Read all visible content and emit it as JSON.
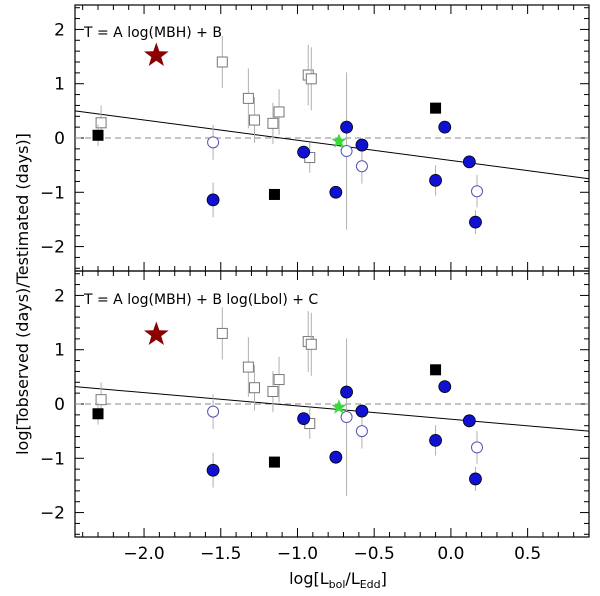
{
  "chart_data": [
    {
      "type": "scatter",
      "title": "T = A log(MBH) + B",
      "xlim": [
        -2.45,
        0.9
      ],
      "ylim": [
        -2.45,
        2.45
      ],
      "yticks": [
        -2,
        -1,
        0,
        1,
        2
      ],
      "reference_line_y": 0,
      "fit_line": [
        [
          -2.45,
          0.5
        ],
        [
          0.9,
          -0.75
        ]
      ],
      "star_red": {
        "x": -1.92,
        "y": 1.52
      },
      "star_green": {
        "x": -0.73,
        "y": -0.06
      },
      "filled_squares": [
        {
          "x": -2.3,
          "y": 0.05,
          "err": 0.2
        },
        {
          "x": -1.15,
          "y": -1.04
        },
        {
          "x": -0.1,
          "y": 0.55
        }
      ],
      "open_squares": [
        {
          "x": -2.28,
          "y": 0.28,
          "err": 0.32
        },
        {
          "x": -1.49,
          "y": 1.4,
          "err": 0.48
        },
        {
          "x": -1.32,
          "y": 0.73,
          "err": 0.55
        },
        {
          "x": -1.28,
          "y": 0.33,
          "err": 0.42
        },
        {
          "x": -1.16,
          "y": 0.27,
          "err": 0.38
        },
        {
          "x": -1.12,
          "y": 0.48,
          "err": 0.42
        },
        {
          "x": -0.93,
          "y": 1.16,
          "err": 0.56
        },
        {
          "x": -0.91,
          "y": 1.09,
          "err": 0.58
        },
        {
          "x": -0.92,
          "y": -0.36,
          "err": 0.28
        }
      ],
      "filled_circles": [
        {
          "x": -1.55,
          "y": -1.14,
          "err": 0.32
        },
        {
          "x": -0.96,
          "y": -0.26
        },
        {
          "x": -0.75,
          "y": -1.0
        },
        {
          "x": -0.68,
          "y": 0.2
        },
        {
          "x": -0.58,
          "y": -0.13
        },
        {
          "x": -0.1,
          "y": -0.78,
          "err": 0.28
        },
        {
          "x": -0.04,
          "y": 0.2
        },
        {
          "x": 0.12,
          "y": -0.44
        },
        {
          "x": 0.16,
          "y": -1.55,
          "err": 0.22
        }
      ],
      "open_circles": [
        {
          "x": -1.55,
          "y": -0.08,
          "err": 0.32
        },
        {
          "x": -0.68,
          "y": -0.24,
          "err": 1.45
        },
        {
          "x": -0.58,
          "y": -0.52,
          "err": 0.32
        },
        {
          "x": 0.17,
          "y": -0.98,
          "err": 0.3
        }
      ]
    },
    {
      "type": "scatter",
      "title": "T = A log(MBH) + B log(Lbol) + C",
      "xlim": [
        -2.45,
        0.9
      ],
      "ylim": [
        -2.45,
        2.45
      ],
      "yticks": [
        -2,
        -1,
        0,
        1,
        2
      ],
      "xticks": [
        -2.0,
        -1.5,
        -1.0,
        -0.5,
        0.0,
        0.5
      ],
      "xtick_labels": [
        "−2.0",
        "−1.5",
        "−1.0",
        "−0.5",
        "0.0",
        "0.5"
      ],
      "reference_line_y": 0,
      "fit_line": [
        [
          -2.45,
          0.32
        ],
        [
          0.9,
          -0.5
        ]
      ],
      "star_red": {
        "x": -1.92,
        "y": 1.28
      },
      "star_green": {
        "x": -0.73,
        "y": -0.06
      },
      "filled_squares": [
        {
          "x": -2.3,
          "y": -0.18,
          "err": 0.2
        },
        {
          "x": -1.15,
          "y": -1.07
        },
        {
          "x": -0.1,
          "y": 0.63
        }
      ],
      "open_squares": [
        {
          "x": -2.28,
          "y": 0.08,
          "err": 0.32
        },
        {
          "x": -1.49,
          "y": 1.3,
          "err": 0.48
        },
        {
          "x": -1.32,
          "y": 0.68,
          "err": 0.55
        },
        {
          "x": -1.28,
          "y": 0.3,
          "err": 0.42
        },
        {
          "x": -1.16,
          "y": 0.23,
          "err": 0.38
        },
        {
          "x": -1.12,
          "y": 0.45,
          "err": 0.42
        },
        {
          "x": -0.93,
          "y": 1.15,
          "err": 0.56
        },
        {
          "x": -0.91,
          "y": 1.1,
          "err": 0.58
        },
        {
          "x": -0.92,
          "y": -0.36,
          "err": 0.28
        }
      ],
      "filled_circles": [
        {
          "x": -1.55,
          "y": -1.22,
          "err": 0.32
        },
        {
          "x": -0.96,
          "y": -0.27
        },
        {
          "x": -0.75,
          "y": -0.98
        },
        {
          "x": -0.68,
          "y": 0.22
        },
        {
          "x": -0.58,
          "y": -0.13
        },
        {
          "x": -0.1,
          "y": -0.67,
          "err": 0.28
        },
        {
          "x": -0.04,
          "y": 0.32
        },
        {
          "x": 0.12,
          "y": -0.31
        },
        {
          "x": 0.16,
          "y": -1.38,
          "err": 0.22
        }
      ],
      "open_circles": [
        {
          "x": -1.55,
          "y": -0.14,
          "err": 0.32
        },
        {
          "x": -0.68,
          "y": -0.24,
          "err": 1.45
        },
        {
          "x": -0.58,
          "y": -0.5,
          "err": 0.32
        },
        {
          "x": 0.17,
          "y": -0.8,
          "err": 0.3
        }
      ]
    }
  ],
  "ylabel": "log[Tobserved (days)/Testimated (days)]",
  "xlabel": {
    "prefix": "log[L",
    "sub1": "bol",
    "mid": "/L",
    "sub2": "Edd",
    "suffix": "]"
  },
  "colors": {
    "blue": "#1010d0",
    "blue_open": "#5555b0",
    "red_star": "#8b0000",
    "green_star": "#33dd33",
    "errorbar": "#b0b0b0",
    "open_square": "#777777",
    "black": "#000000"
  }
}
